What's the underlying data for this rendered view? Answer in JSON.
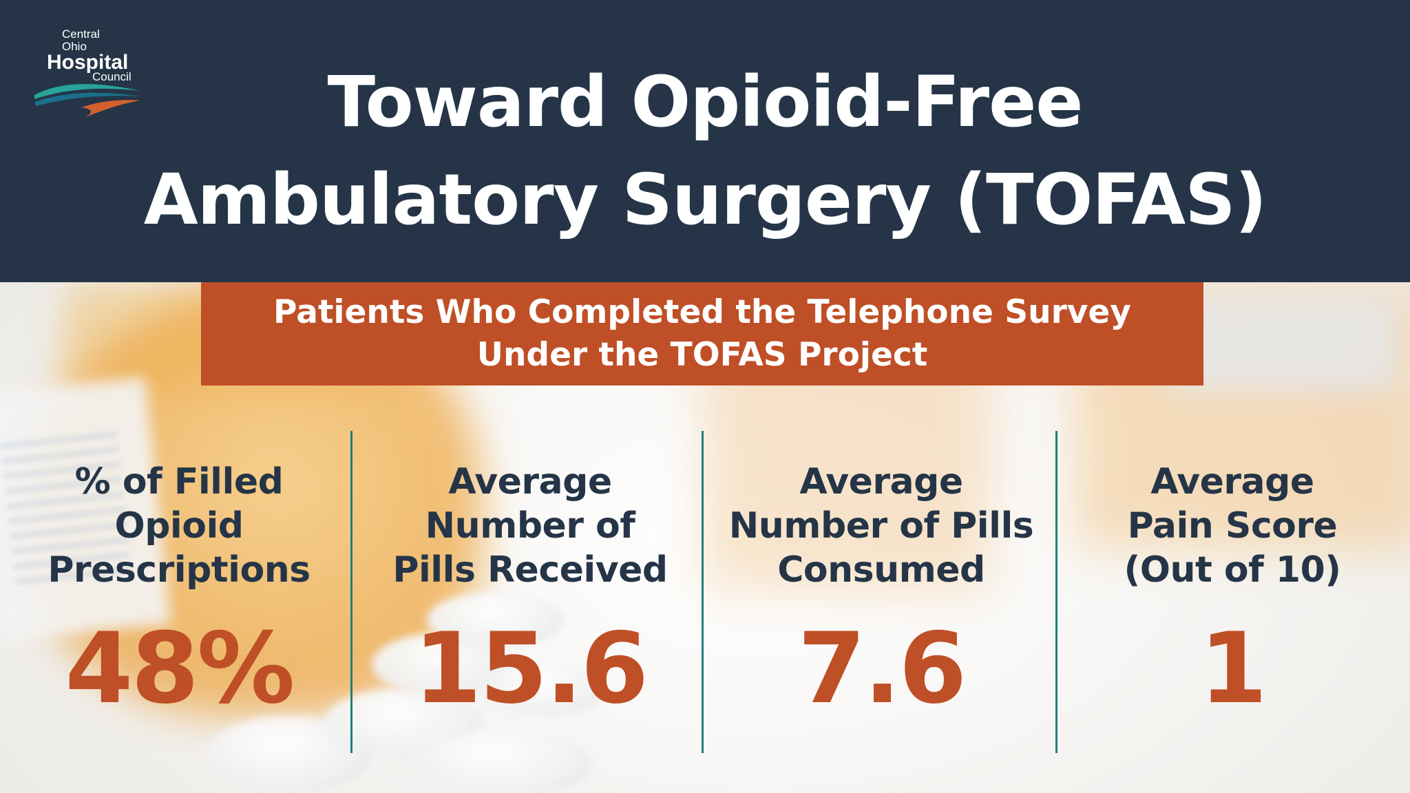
{
  "logo": {
    "line1": "Central",
    "line2": "Ohio",
    "line3": "Hospital",
    "line4": "Council",
    "icon": "wave-swoosh-icon"
  },
  "title": {
    "line1": "Toward Opioid-Free",
    "line2": "Ambulatory Surgery (TOFAS)"
  },
  "banner": {
    "line1": "Patients Who Completed the Telephone Survey",
    "line2": "Under the TOFAS Project"
  },
  "stats": [
    {
      "label_lines": [
        "% of Filled",
        "Opioid",
        "Prescriptions"
      ],
      "value": "48%"
    },
    {
      "label_lines": [
        "Average",
        "Number of",
        "Pills Received"
      ],
      "value": "15.6"
    },
    {
      "label_lines": [
        "Average",
        "Number of Pills",
        "Consumed"
      ],
      "value": "7.6"
    },
    {
      "label_lines": [
        "Average",
        "Pain Score",
        "(Out of 10)"
      ],
      "value": "1"
    }
  ],
  "colors": {
    "header_bg": "#253547",
    "accent_orange": "#bf4f26",
    "divider_teal": "#1f7f7a",
    "label_navy": "#253547"
  }
}
